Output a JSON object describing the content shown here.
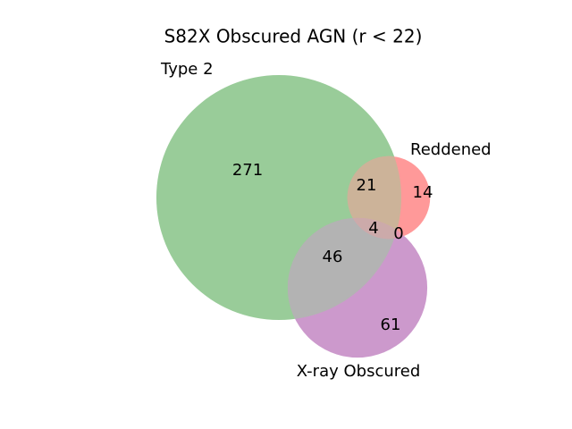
{
  "chart_data": {
    "type": "venn",
    "title": "S82X Obscured AGN (r < 22)",
    "sets": [
      {
        "name": "Type 2",
        "color": "#99cc99"
      },
      {
        "name": "Reddened",
        "color": "#ff9999"
      },
      {
        "name": "X-ray Obscured",
        "color": "#cc99cc"
      }
    ],
    "subsets": [
      271,
      14,
      21,
      61,
      46,
      0,
      4
    ]
  }
}
